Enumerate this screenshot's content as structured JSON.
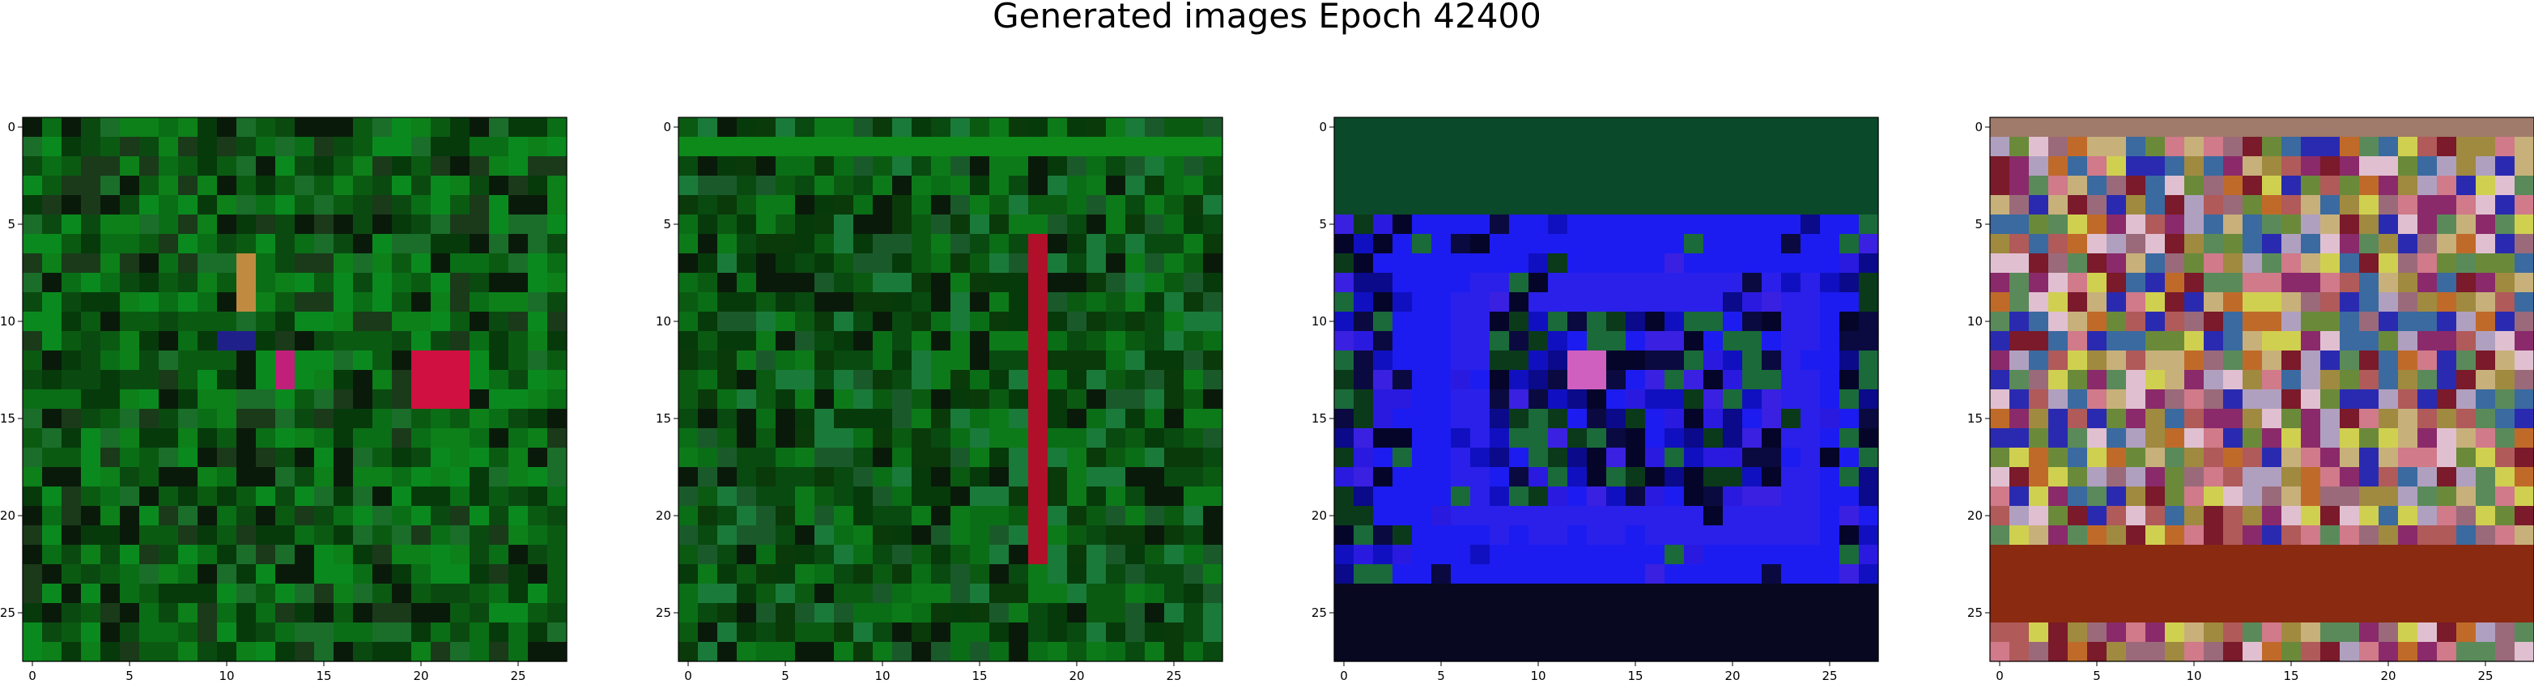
{
  "figure": {
    "title": "Generated images Epoch 42400"
  },
  "chart_data": [
    {
      "type": "heatmap",
      "title": "",
      "xlabel": "",
      "ylabel": "",
      "grid_size": [
        28,
        28
      ],
      "xlim": [
        -0.5,
        27.5
      ],
      "ylim": [
        27.5,
        -0.5
      ],
      "xticks": [
        0,
        5,
        10,
        15,
        20,
        25
      ],
      "yticks": [
        0,
        5,
        10,
        15,
        20,
        25
      ],
      "grid": false,
      "palette": [
        "#0b5a12",
        "#0a6e16",
        "#0d8019",
        "#0a4a10",
        "#063a0b",
        "#1a3a1a",
        "#0a1a0a",
        "#1a6e2a",
        "#0a8a1e"
      ],
      "features": [
        {
          "kind": "block",
          "rows": [
            12,
            14
          ],
          "cols": [
            20,
            22
          ],
          "color": "#d01040"
        },
        {
          "kind": "block",
          "rows": [
            12,
            13
          ],
          "cols": [
            13,
            13
          ],
          "color": "#c0207a"
        },
        {
          "kind": "block",
          "rows": [
            7,
            9
          ],
          "cols": [
            11,
            11
          ],
          "color": "#c08a40"
        },
        {
          "kind": "block",
          "rows": [
            11,
            11
          ],
          "cols": [
            10,
            11
          ],
          "color": "#20208a"
        }
      ]
    },
    {
      "type": "heatmap",
      "title": "",
      "xlabel": "",
      "ylabel": "",
      "grid_size": [
        28,
        28
      ],
      "xlim": [
        -0.5,
        27.5
      ],
      "ylim": [
        27.5,
        -0.5
      ],
      "xticks": [
        0,
        5,
        10,
        15,
        20,
        25
      ],
      "yticks": [
        0,
        5,
        10,
        15,
        20,
        25
      ],
      "grid": false,
      "palette": [
        "#0b5a12",
        "#0a6e16",
        "#0d7a19",
        "#084a10",
        "#063a0b",
        "#1a5a2a",
        "#0a1a0a",
        "#1a7a3a",
        "#0a3a0a"
      ],
      "features": [
        {
          "kind": "block",
          "rows": [
            6,
            22
          ],
          "cols": [
            18,
            18
          ],
          "color": "#b0102a"
        },
        {
          "kind": "block",
          "rows": [
            1,
            1
          ],
          "cols": [
            0,
            27
          ],
          "color": "#0e8a1a"
        }
      ]
    },
    {
      "type": "heatmap",
      "title": "",
      "xlabel": "",
      "ylabel": "",
      "grid_size": [
        28,
        28
      ],
      "xlim": [
        -0.5,
        27.5
      ],
      "ylim": [
        27.5,
        -0.5
      ],
      "xticks": [
        0,
        5,
        10,
        15,
        20,
        25
      ],
      "yticks": [
        0,
        5,
        10,
        15,
        20,
        25
      ],
      "grid": false,
      "palette": [
        "#1c1cf0",
        "#2a1ae0",
        "#0a0a8a",
        "#1010c0",
        "#3a20e0",
        "#05052a",
        "#0a3a1a",
        "#1a6a3a",
        "#0a0a40"
      ],
      "features": [
        {
          "kind": "ring",
          "rows": [
            5,
            23
          ],
          "cols": [
            3,
            25
          ],
          "width": 3,
          "color": "#1c1cf0"
        },
        {
          "kind": "ring",
          "rows": [
            8,
            21
          ],
          "cols": [
            6,
            24
          ],
          "width": 2,
          "color": "#2a20ea"
        },
        {
          "kind": "block",
          "rows": [
            12,
            13
          ],
          "cols": [
            12,
            13
          ],
          "color": "#d060c0"
        },
        {
          "kind": "block",
          "rows": [
            0,
            4
          ],
          "cols": [
            0,
            27
          ],
          "color": "#0a4a2a"
        },
        {
          "kind": "block",
          "rows": [
            24,
            27
          ],
          "cols": [
            0,
            27
          ],
          "color": "#080820"
        }
      ]
    },
    {
      "type": "heatmap",
      "title": "",
      "xlabel": "",
      "ylabel": "",
      "grid_size": [
        28,
        28
      ],
      "xlim": [
        -0.5,
        27.5
      ],
      "ylim": [
        27.5,
        -0.5
      ],
      "xticks": [
        0,
        5,
        10,
        15,
        20,
        25
      ],
      "yticks": [
        0,
        5,
        10,
        15,
        20,
        25
      ],
      "grid": false,
      "palette": [
        "#c8b07a",
        "#9a6a7a",
        "#b05a5a",
        "#6a8a3a",
        "#d0d050",
        "#7a1a2a",
        "#2a2ab0",
        "#b0a0c0",
        "#c06a2a",
        "#5a8a5a",
        "#e0c0d0",
        "#8a2a6a",
        "#d07a8a",
        "#3a6aa0",
        "#a08a40"
      ],
      "features": [
        {
          "kind": "block",
          "rows": [
            22,
            25
          ],
          "cols": [
            0,
            27
          ],
          "color": "#8a2a10"
        },
        {
          "kind": "block",
          "rows": [
            0,
            0
          ],
          "cols": [
            0,
            27
          ],
          "color": "#a07a6a"
        }
      ]
    }
  ]
}
